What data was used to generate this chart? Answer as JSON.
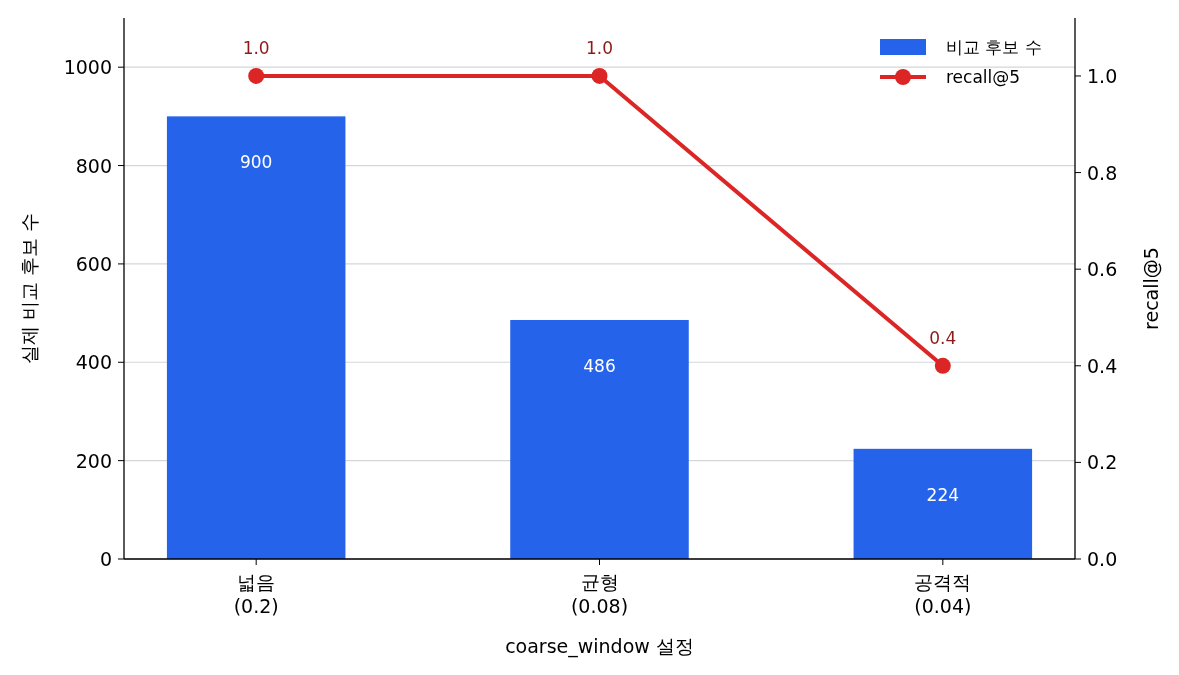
{
  "chart_data": {
    "type": "bar",
    "xlabel": "coarse_window 설정",
    "ylabel": "실제 비교 후보 수",
    "y2label": "recall@5",
    "categories": [
      "넓음\n(0.2)",
      "균형\n(0.08)",
      "공격적\n(0.04)"
    ],
    "series": [
      {
        "name": "비교 후보 수",
        "color": "#2563eb",
        "values": [
          900,
          486,
          224
        ],
        "value_labels": [
          "900",
          "486",
          "224"
        ]
      },
      {
        "name": "recall@5",
        "type": "line",
        "axis": "y2",
        "color": "#dc2626",
        "marker": "circle",
        "line_style": "solid",
        "values": [
          1.0,
          1.0,
          0.4
        ],
        "value_labels": [
          "1.0",
          "1.0",
          "0.4"
        ]
      }
    ],
    "ylim": [
      0,
      1100
    ],
    "yticks": [
      0,
      200,
      400,
      600,
      800,
      1000
    ],
    "y2lim": [
      0,
      1.12
    ],
    "y2ticks": [
      {
        "value": 0,
        "label": "0.0"
      },
      {
        "value": 0.2,
        "label": "0.2"
      },
      {
        "value": 0.4,
        "label": "0.4"
      },
      {
        "value": 0.6,
        "label": "0.6"
      },
      {
        "value": 0.8,
        "label": "0.8"
      },
      {
        "value": 1.0,
        "label": "1.0"
      }
    ],
    "grid": "y",
    "legend": "top right"
  }
}
